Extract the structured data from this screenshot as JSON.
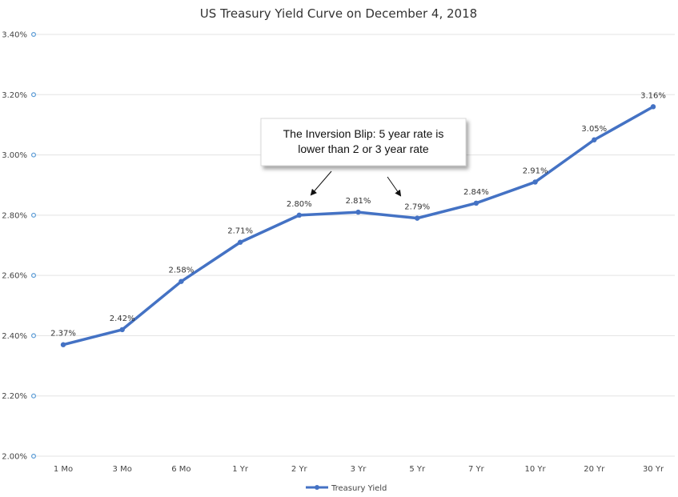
{
  "chart_data": {
    "type": "line",
    "title": "US Treasury Yield Curve on December 4, 2018",
    "xlabel": "",
    "ylabel": "",
    "categories": [
      "1 Mo",
      "3 Mo",
      "6 Mo",
      "1 Yr",
      "2 Yr",
      "3 Yr",
      "5 Yr",
      "7 Yr",
      "10 Yr",
      "20 Yr",
      "30 Yr"
    ],
    "series": [
      {
        "name": "Treasury  Yield",
        "values": [
          2.37,
          2.42,
          2.58,
          2.71,
          2.8,
          2.81,
          2.79,
          2.84,
          2.91,
          3.05,
          3.16
        ],
        "data_labels": [
          "2.37%",
          "2.42%",
          "2.58%",
          "2.71%",
          "2.80%",
          "2.81%",
          "2.79%",
          "2.84%",
          "2.91%",
          "3.05%",
          "3.16%"
        ]
      }
    ],
    "ylim": [
      2.0,
      3.4
    ],
    "yticks": [
      2.0,
      2.2,
      2.4,
      2.6,
      2.8,
      3.0,
      3.2,
      3.4
    ],
    "ytick_labels": [
      "2.00%",
      "2.20%",
      "2.40%",
      "2.60%",
      "2.80%",
      "3.00%",
      "3.20%",
      "3.40%"
    ],
    "grid": true,
    "legend": "bottom",
    "colors": {
      "series": "#4472c4",
      "grid": "#e3e3e3",
      "tick_marker": "#5b9bd5"
    },
    "annotation": {
      "line1": "The Inversion Blip: 5 year rate is",
      "line2": "lower than 2 or 3 year rate",
      "points_to": [
        "2 Yr",
        "5 Yr"
      ]
    }
  }
}
